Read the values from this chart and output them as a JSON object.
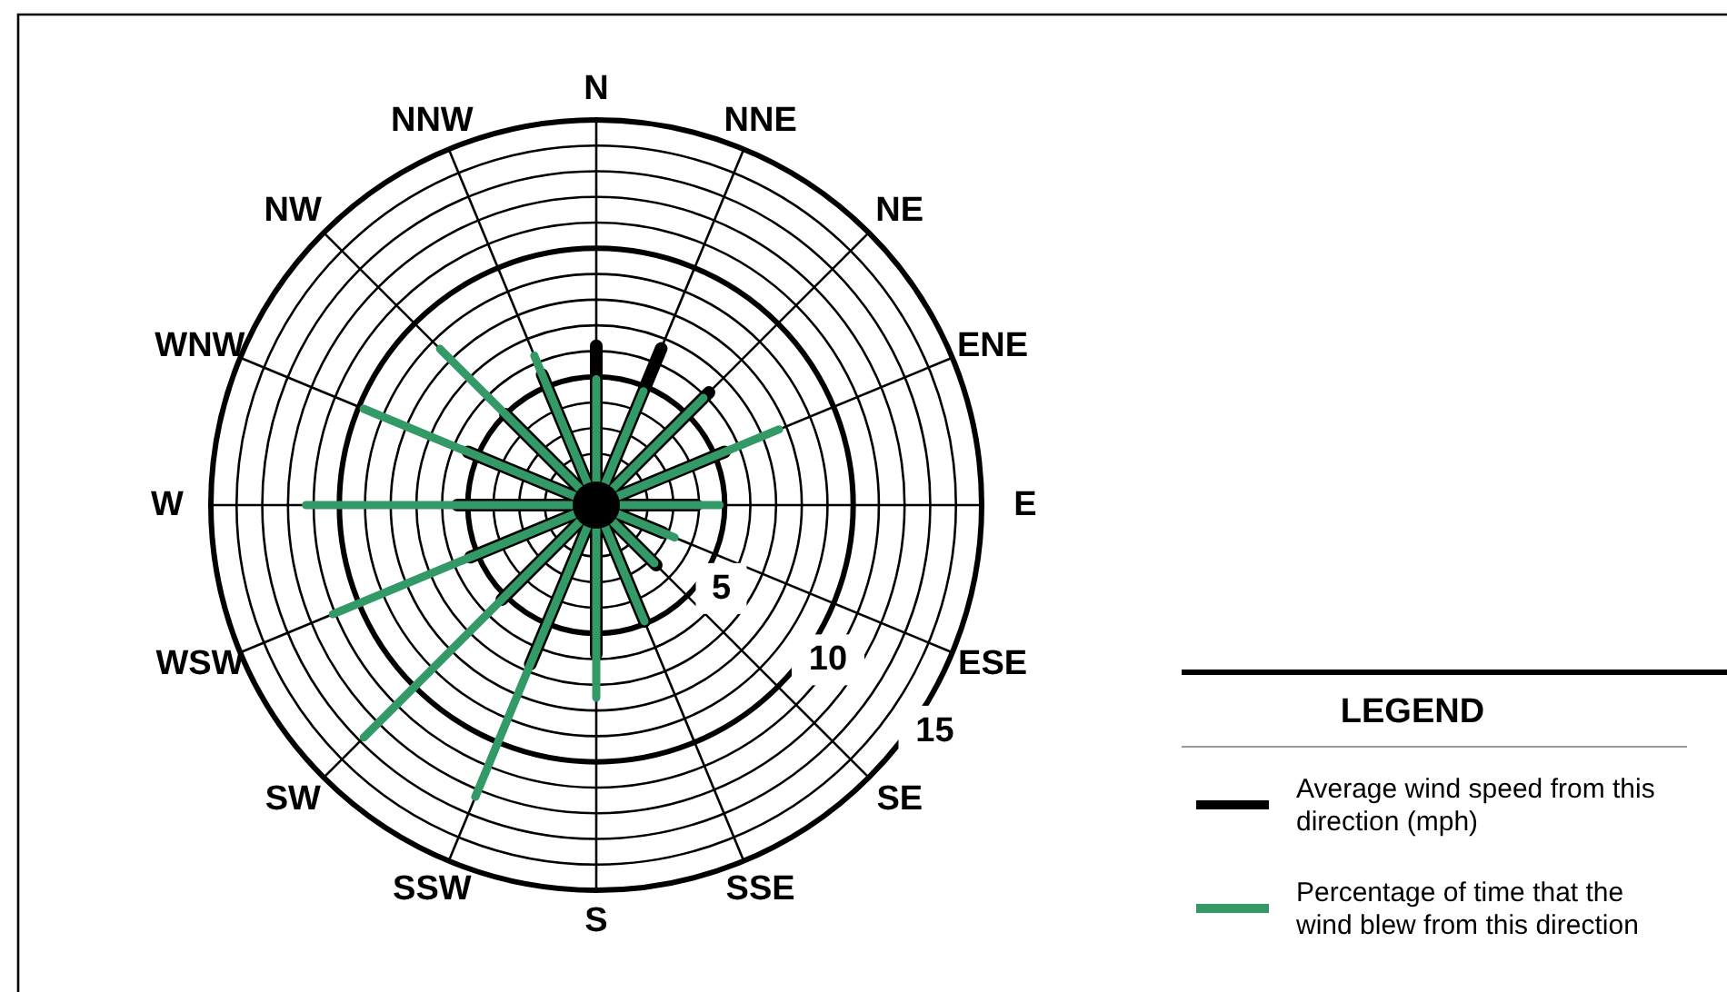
{
  "chart_data": {
    "type": "radar",
    "legend_title": "LEGEND",
    "categories": [
      "N",
      "NNE",
      "NE",
      "ENE",
      "E",
      "ESE",
      "SE",
      "SSE",
      "S",
      "SSW",
      "SW",
      "WSW",
      "W",
      "WNW",
      "NW",
      "NNW"
    ],
    "series": [
      {
        "name": "Average wind speed from this direction (mph)",
        "color": "#000000",
        "values": [
          6.2,
          6.6,
          6.2,
          5.4,
          3.9,
          2.8,
          3.3,
          4.9,
          5.8,
          6.7,
          5.2,
          5.3,
          5.4,
          5.4,
          5.0,
          5.5
        ]
      },
      {
        "name": "Percentage of time that the wind blew from this direction",
        "color": "#339966",
        "values": [
          4.9,
          4.8,
          5.9,
          7.7,
          4.8,
          3.3,
          3.2,
          4.9,
          7.5,
          12.3,
          12.8,
          11.1,
          11.3,
          9.8,
          8.6,
          6.3
        ]
      }
    ],
    "ylim": [
      0,
      15
    ],
    "yticks": [
      5,
      10,
      15
    ],
    "grid": true,
    "legend": "bottom right"
  }
}
